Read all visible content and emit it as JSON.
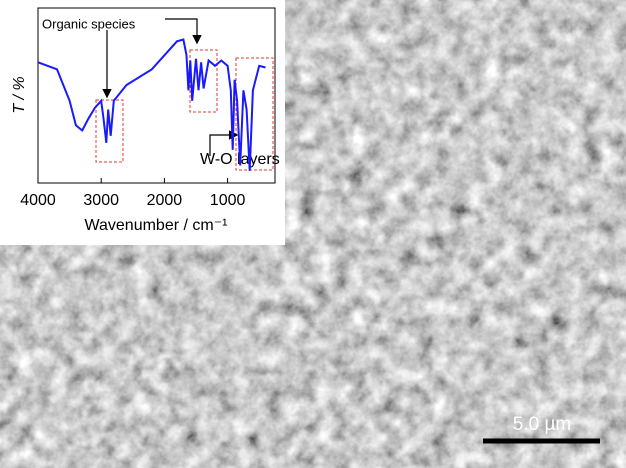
{
  "chart_data": {
    "type": "line",
    "x_label": "Wavenumber / cm⁻¹",
    "y_label": "T / %",
    "annotations": [
      "Organic species",
      "W-O layers"
    ],
    "scale_bar": "5.0 µm",
    "x": [
      4000,
      3700,
      3500,
      3400,
      3300,
      3200,
      3100,
      3000,
      2960,
      2920,
      2890,
      2850,
      2800,
      2600,
      2200,
      2000,
      1800,
      1700,
      1650,
      1620,
      1590,
      1560,
      1500,
      1460,
      1420,
      1380,
      1300,
      1200,
      1100,
      1000,
      950,
      920,
      890,
      850,
      800,
      750,
      700,
      650,
      600,
      500,
      400
    ],
    "series": [
      {
        "color": "#1a1aff",
        "values": [
          69,
          65,
          47,
          33,
          30,
          37,
          43,
          47,
          36,
          23,
          42,
          27,
          47,
          56,
          65,
          73,
          81,
          82,
          73,
          53,
          70,
          47,
          71,
          53,
          69,
          54,
          70,
          67,
          70,
          67,
          53,
          19,
          59,
          47,
          10,
          53,
          42,
          7,
          53,
          67,
          66
        ]
      }
    ],
    "xlim": [
      4000,
      250
    ],
    "xticks": [
      4000,
      3000,
      2000,
      1000
    ],
    "ylim": [
      0,
      100
    ]
  }
}
